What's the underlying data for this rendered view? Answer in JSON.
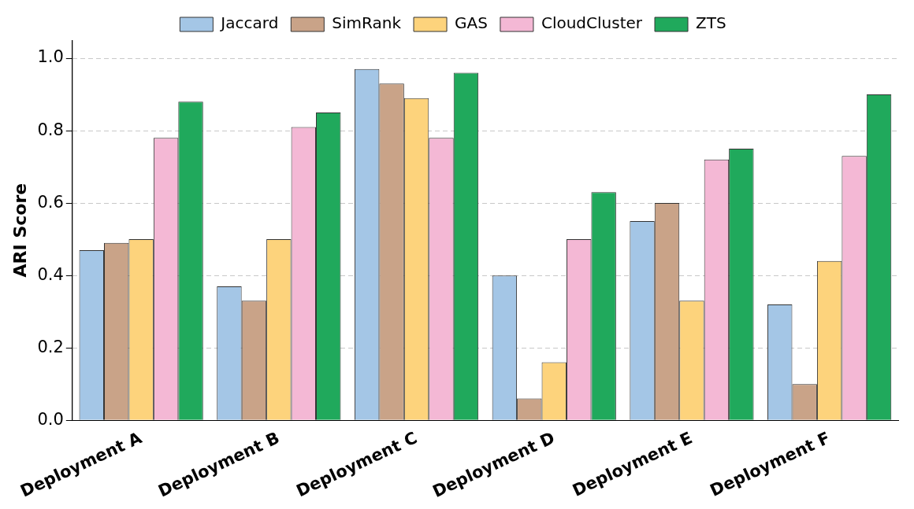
{
  "chart_data": {
    "type": "bar",
    "ylabel": "ARI Score",
    "categories": [
      "Deployment A",
      "Deployment B",
      "Deployment C",
      "Deployment D",
      "Deployment E",
      "Deployment F"
    ],
    "series": [
      {
        "name": "Jaccard",
        "color": "#a4c6e6",
        "values": [
          0.47,
          0.37,
          0.97,
          0.4,
          0.55,
          0.32
        ]
      },
      {
        "name": "SimRank",
        "color": "#c9a388",
        "values": [
          0.49,
          0.33,
          0.93,
          0.06,
          0.6,
          0.1
        ]
      },
      {
        "name": "GAS",
        "color": "#fdd37c",
        "values": [
          0.5,
          0.5,
          0.89,
          0.16,
          0.33,
          0.44
        ]
      },
      {
        "name": "CloudCluster",
        "color": "#f4b8d5",
        "values": [
          0.78,
          0.81,
          0.78,
          0.5,
          0.72,
          0.73
        ]
      },
      {
        "name": "ZTS",
        "color": "#20a95c",
        "values": [
          0.88,
          0.85,
          0.96,
          0.63,
          0.75,
          0.9
        ]
      }
    ],
    "ylim": [
      0,
      1.05
    ],
    "yticks": [
      {
        "value": 0,
        "label": "0.0"
      },
      0.2,
      0.4,
      0.6,
      0.8,
      {
        "value": 1,
        "label": "1.0"
      }
    ],
    "grid": "y",
    "legend": "top"
  }
}
